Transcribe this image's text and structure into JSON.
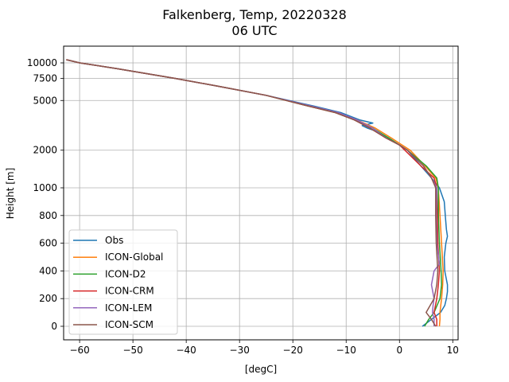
{
  "chart_data": {
    "type": "line",
    "title": [
      "Falkenberg, Temp, 20220328",
      "06 UTC"
    ],
    "xlabel": "[degC]",
    "ylabel": "Height [m]",
    "xlim": [
      -63,
      11
    ],
    "x_ticks": [
      -60,
      -50,
      -40,
      -30,
      -20,
      -10,
      0,
      10
    ],
    "y_scale": "piecewise: linear below 1000 m, log above",
    "y_ticks": [
      0,
      200,
      400,
      600,
      800,
      1000,
      2000,
      5000,
      7500,
      10000
    ],
    "grid": true,
    "legend_position": "lower-left",
    "series": [
      {
        "name": "Obs",
        "color": "#1f77b4",
        "points": [
          [
            10600,
            -62.5
          ],
          [
            10000,
            -60
          ],
          [
            9000,
            -53
          ],
          [
            7500,
            -42
          ],
          [
            6500,
            -34
          ],
          [
            5500,
            -25
          ],
          [
            4500,
            -16
          ],
          [
            4000,
            -11
          ],
          [
            3500,
            -7.5
          ],
          [
            3300,
            -5
          ],
          [
            3150,
            -7
          ],
          [
            3000,
            -6
          ],
          [
            2800,
            -4
          ],
          [
            2500,
            -2
          ],
          [
            2200,
            0
          ],
          [
            2000,
            1.5
          ],
          [
            1500,
            4
          ],
          [
            1200,
            6
          ],
          [
            1000,
            7.5
          ],
          [
            900,
            8.4
          ],
          [
            800,
            8.6
          ],
          [
            700,
            8.8
          ],
          [
            650,
            9
          ],
          [
            600,
            8.7
          ],
          [
            500,
            8.4
          ],
          [
            400,
            8.5
          ],
          [
            300,
            9
          ],
          [
            250,
            9
          ],
          [
            200,
            8.8
          ],
          [
            150,
            8.5
          ],
          [
            100,
            7.7
          ],
          [
            50,
            6
          ],
          [
            0,
            4.3
          ]
        ]
      },
      {
        "name": "ICON-Global",
        "color": "#ff7f0e",
        "points": [
          [
            10600,
            -62.5
          ],
          [
            10000,
            -60
          ],
          [
            9000,
            -53
          ],
          [
            7500,
            -42
          ],
          [
            6500,
            -34
          ],
          [
            5500,
            -25
          ],
          [
            4500,
            -17
          ],
          [
            4000,
            -12
          ],
          [
            3500,
            -8
          ],
          [
            3000,
            -4.5
          ],
          [
            2500,
            -1.5
          ],
          [
            2200,
            0.5
          ],
          [
            2000,
            2
          ],
          [
            1500,
            4.8
          ],
          [
            1200,
            6.8
          ],
          [
            1000,
            7.3
          ],
          [
            800,
            7.6
          ],
          [
            600,
            7.9
          ],
          [
            400,
            8.2
          ],
          [
            300,
            8.1
          ],
          [
            200,
            7.9
          ],
          [
            100,
            7.6
          ],
          [
            50,
            7.6
          ],
          [
            0,
            7.5
          ]
        ]
      },
      {
        "name": "ICON-D2",
        "color": "#2ca02c",
        "points": [
          [
            10600,
            -62.5
          ],
          [
            10000,
            -60
          ],
          [
            9000,
            -53
          ],
          [
            7500,
            -42
          ],
          [
            6500,
            -34
          ],
          [
            5500,
            -25
          ],
          [
            4500,
            -17
          ],
          [
            4000,
            -12
          ],
          [
            3500,
            -8.5
          ],
          [
            3000,
            -5
          ],
          [
            2500,
            -2
          ],
          [
            2200,
            0
          ],
          [
            2000,
            1.5
          ],
          [
            1500,
            5
          ],
          [
            1200,
            7
          ],
          [
            1000,
            7.3
          ],
          [
            800,
            7.3
          ],
          [
            600,
            7.5
          ],
          [
            400,
            7.8
          ],
          [
            300,
            7.9
          ],
          [
            200,
            7.6
          ],
          [
            100,
            6.5
          ],
          [
            50,
            5.5
          ],
          [
            0,
            4.7
          ]
        ]
      },
      {
        "name": "ICON-CRM",
        "color": "#d62728",
        "points": [
          [
            10600,
            -62.5
          ],
          [
            10000,
            -60
          ],
          [
            9000,
            -53
          ],
          [
            7500,
            -42
          ],
          [
            6500,
            -34
          ],
          [
            5500,
            -25
          ],
          [
            4500,
            -17
          ],
          [
            4000,
            -12
          ],
          [
            3500,
            -8.5
          ],
          [
            3000,
            -5.5
          ],
          [
            2500,
            -2.5
          ],
          [
            2200,
            0
          ],
          [
            2000,
            1
          ],
          [
            1500,
            4
          ],
          [
            1200,
            6.5
          ],
          [
            1000,
            7
          ],
          [
            800,
            7.1
          ],
          [
            600,
            7.2
          ],
          [
            400,
            7.5
          ],
          [
            300,
            7.3
          ],
          [
            200,
            7
          ],
          [
            100,
            6.5
          ],
          [
            50,
            7
          ],
          [
            0,
            7
          ]
        ]
      },
      {
        "name": "ICON-LEM",
        "color": "#9467bd",
        "points": [
          [
            10600,
            -62.5
          ],
          [
            10000,
            -60
          ],
          [
            9000,
            -53
          ],
          [
            7500,
            -42
          ],
          [
            6500,
            -34
          ],
          [
            5500,
            -25
          ],
          [
            4500,
            -16.5
          ],
          [
            4000,
            -11.5
          ],
          [
            3500,
            -8
          ],
          [
            3000,
            -5
          ],
          [
            2500,
            -2.5
          ],
          [
            2200,
            0
          ],
          [
            2000,
            1.5
          ],
          [
            1500,
            4.5
          ],
          [
            1200,
            6
          ],
          [
            1000,
            7
          ],
          [
            800,
            6.9
          ],
          [
            600,
            7
          ],
          [
            450,
            7.5
          ],
          [
            400,
            6.5
          ],
          [
            300,
            6
          ],
          [
            200,
            6.5
          ],
          [
            150,
            6.3
          ],
          [
            100,
            6.2
          ],
          [
            50,
            6.5
          ],
          [
            0,
            6.5
          ]
        ]
      },
      {
        "name": "ICON-SCM",
        "color": "#8c564b",
        "points": [
          [
            10600,
            -62.5
          ],
          [
            10000,
            -60
          ],
          [
            9000,
            -53
          ],
          [
            7500,
            -42
          ],
          [
            6500,
            -34
          ],
          [
            5500,
            -25
          ],
          [
            4500,
            -17
          ],
          [
            4000,
            -12
          ],
          [
            3500,
            -8.5
          ],
          [
            3000,
            -5.5
          ],
          [
            2500,
            -2.5
          ],
          [
            2200,
            0
          ],
          [
            2000,
            1.5
          ],
          [
            1500,
            4.5
          ],
          [
            1200,
            6
          ],
          [
            1000,
            6.8
          ],
          [
            800,
            6.8
          ],
          [
            600,
            6.9
          ],
          [
            400,
            7.2
          ],
          [
            300,
            7
          ],
          [
            200,
            6.5
          ],
          [
            100,
            5
          ],
          [
            50,
            6
          ],
          [
            0,
            6.8
          ]
        ]
      }
    ]
  }
}
